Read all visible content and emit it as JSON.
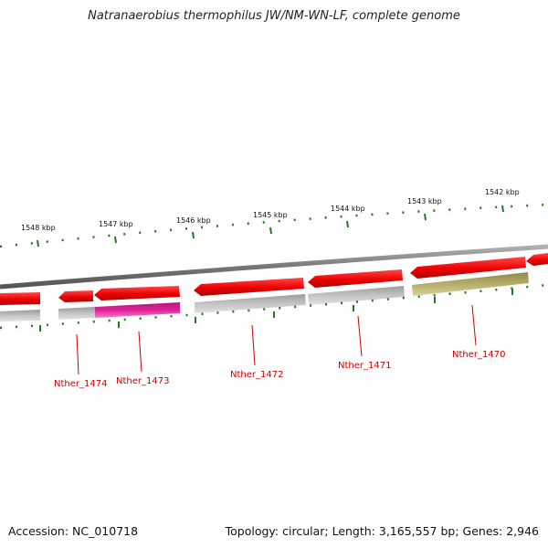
{
  "title": "Natranaerobius thermophilus JW/NM-WN-LF, complete genome",
  "footer": {
    "accession": "Accession: NC_010718",
    "stats": "Topology: circular; Length: 3,165,557 bp; Genes: 2,946"
  },
  "scale_labels": [
    "1548 kbp",
    "1547 kbp",
    "1546 kbp",
    "1545 kbp",
    "1544 kbp",
    "1543 kbp",
    "1542 kbp"
  ],
  "gene_labels": [
    "Nther_1474",
    "Nther_1473",
    "Nther_1472",
    "Nther_1471",
    "Nther_1470"
  ],
  "colors": {
    "forward_gene": "#ee0000",
    "backbone": "#888888",
    "tick": "#1f7a1f",
    "cds_gray": "#b8b8b8",
    "cds_magenta": "#e0209a",
    "cds_olive": "#b5ad6a",
    "label": "#cc0000"
  }
}
